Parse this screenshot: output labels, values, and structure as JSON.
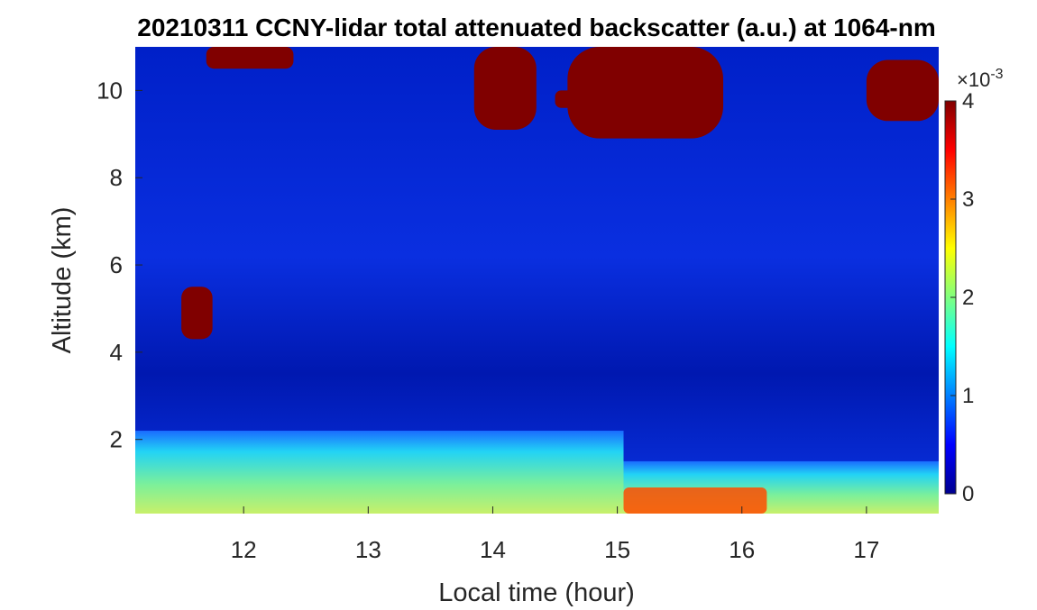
{
  "chart_data": {
    "type": "heatmap",
    "title": "20210311 CCNY-lidar total attenuated backscatter (a.u.) at 1064-nm",
    "xlabel": "Local time (hour)",
    "ylabel": "Altitude (km)",
    "xlim": [
      11.13,
      17.58
    ],
    "ylim": [
      0.3,
      11.0
    ],
    "x_ticks": [
      12,
      13,
      14,
      15,
      16,
      17
    ],
    "y_ticks": [
      2,
      4,
      6,
      8,
      10
    ],
    "colorbar": {
      "colormap": "jet",
      "range": [
        0,
        4
      ],
      "ticks": [
        0,
        1,
        2,
        3,
        4
      ],
      "multiplier": "×10",
      "exponent": "-3"
    },
    "colors": {
      "background": "#00109e",
      "cloud_saturated": "#800000",
      "axis_text": "#262626"
    },
    "features": [
      {
        "name": "cirrus-cloud-top-left",
        "time": [
          11.7,
          12.4
        ],
        "altitude": [
          10.5,
          11.0
        ],
        "value": 4
      },
      {
        "name": "cirrus-cloud-center",
        "time": [
          13.85,
          14.35
        ],
        "altitude": [
          9.1,
          11.0
        ],
        "value": 4
      },
      {
        "name": "cirrus-cloud-small",
        "time": [
          14.5,
          14.72
        ],
        "altitude": [
          9.6,
          10.0
        ],
        "value": 4
      },
      {
        "name": "cirrus-cloud-main",
        "time": [
          14.6,
          15.85
        ],
        "altitude": [
          8.9,
          11.0
        ],
        "value": 4
      },
      {
        "name": "cirrus-cloud-right",
        "time": [
          17.0,
          17.58
        ],
        "altitude": [
          9.3,
          10.7
        ],
        "value": 4
      },
      {
        "name": "mid-level-cloud",
        "time": [
          11.5,
          11.75
        ],
        "altitude": [
          4.3,
          5.5
        ],
        "value": 4
      },
      {
        "name": "aerosol-layer-morning",
        "time": [
          11.13,
          15.05
        ],
        "altitude": [
          0.3,
          2.2
        ],
        "value": 1.8
      },
      {
        "name": "aerosol-layer-afternoon",
        "time": [
          15.05,
          17.58
        ],
        "altitude": [
          0.3,
          1.5
        ],
        "value": 1.7
      },
      {
        "name": "surface-layer-strong",
        "time": [
          15.05,
          16.2
        ],
        "altitude": [
          0.3,
          0.9
        ],
        "value": 3.2
      }
    ]
  }
}
